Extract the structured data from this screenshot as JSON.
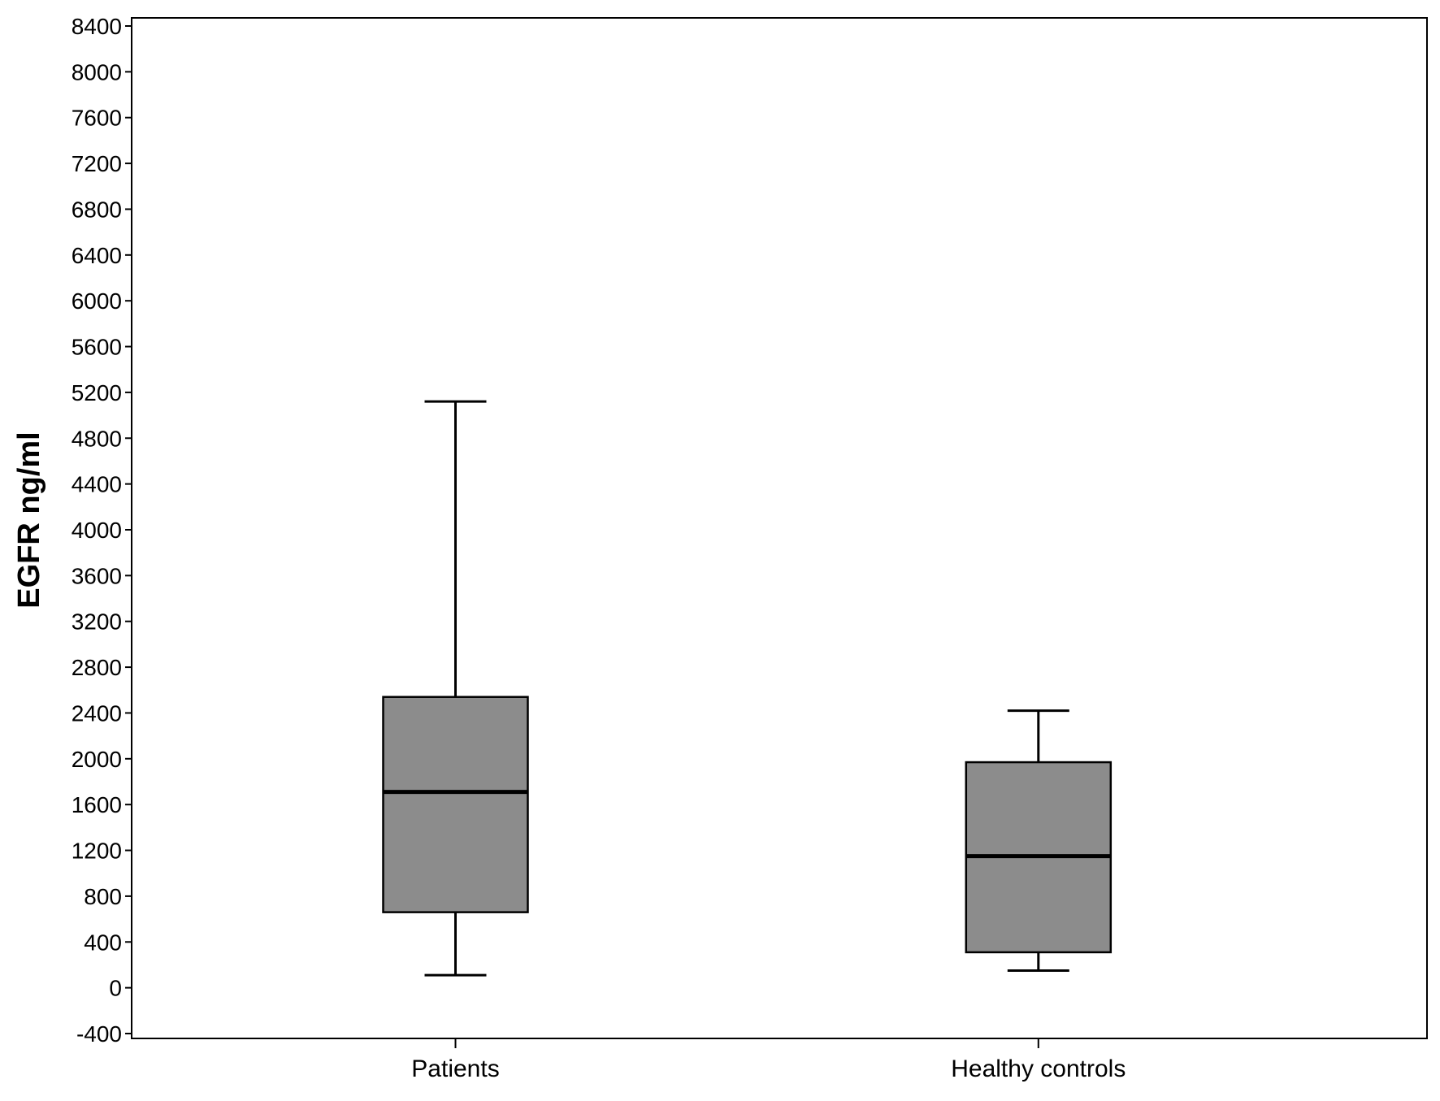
{
  "chart_data": {
    "type": "boxplot",
    "title": "",
    "xlabel": "",
    "ylabel": "EGFR ng/ml",
    "ylim": [
      -400,
      8400
    ],
    "yticks": [
      -400,
      0,
      400,
      800,
      1200,
      1600,
      2000,
      2400,
      2800,
      3200,
      3600,
      4000,
      4400,
      4800,
      5200,
      5600,
      6000,
      6400,
      6800,
      7200,
      7600,
      8000,
      8400
    ],
    "categories": [
      "Patients",
      "Healthy controls"
    ],
    "boxes": [
      {
        "category": "Patients",
        "whisker_low": 110,
        "q1": 660,
        "median": 1710,
        "q3": 2540,
        "whisker_high": 5120
      },
      {
        "category": "Healthy controls",
        "whisker_low": 150,
        "q1": 310,
        "median": 1150,
        "q3": 1970,
        "whisker_high": 2420
      }
    ],
    "grid": false,
    "colors": {
      "box_fill": "#8c8c8c",
      "line": "#000000",
      "background": "#ffffff"
    }
  }
}
